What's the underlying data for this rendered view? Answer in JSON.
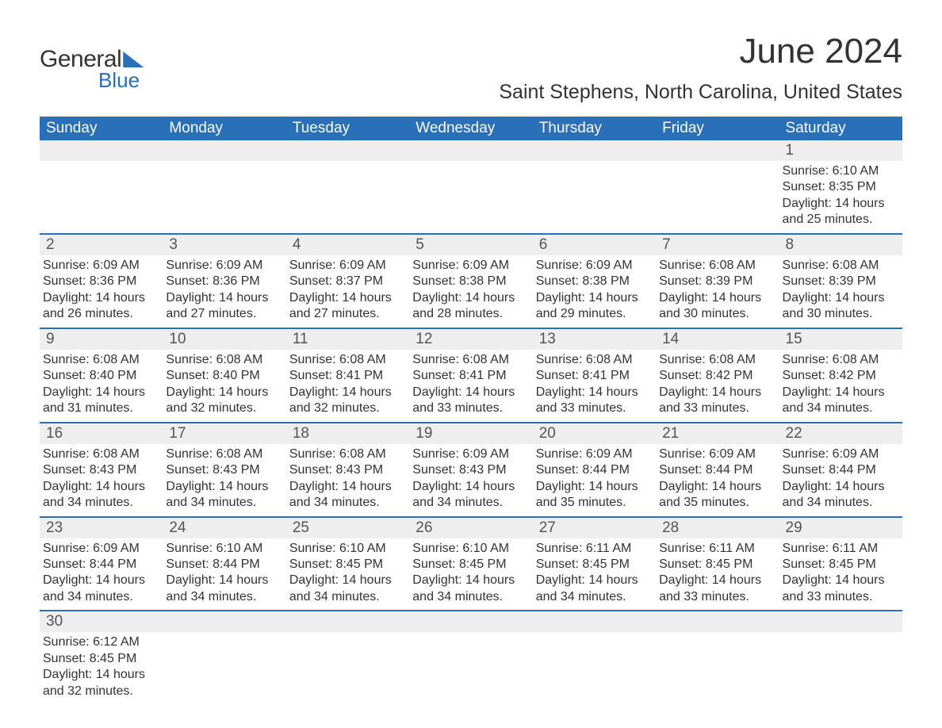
{
  "logo": {
    "word1": "General",
    "word2": "Blue",
    "color_dark": "#333333",
    "color_blue": "#2970b8"
  },
  "title": "June 2024",
  "location": "Saint Stephens, North Carolina, United States",
  "header_bg": "#2970b8",
  "header_fg": "#ffffff",
  "daynum_bg": "#eeeeee",
  "text_color": "#333333",
  "week_headers": [
    "Sunday",
    "Monday",
    "Tuesday",
    "Wednesday",
    "Thursday",
    "Friday",
    "Saturday"
  ],
  "weeks": [
    {
      "nums": [
        "",
        "",
        "",
        "",
        "",
        "",
        "1"
      ],
      "cells": [
        {},
        {},
        {},
        {},
        {},
        {},
        {
          "sr": "Sunrise: 6:10 AM",
          "ss": "Sunset: 8:35 PM",
          "d1": "Daylight: 14 hours",
          "d2": "and 25 minutes."
        }
      ]
    },
    {
      "nums": [
        "2",
        "3",
        "4",
        "5",
        "6",
        "7",
        "8"
      ],
      "cells": [
        {
          "sr": "Sunrise: 6:09 AM",
          "ss": "Sunset: 8:36 PM",
          "d1": "Daylight: 14 hours",
          "d2": "and 26 minutes."
        },
        {
          "sr": "Sunrise: 6:09 AM",
          "ss": "Sunset: 8:36 PM",
          "d1": "Daylight: 14 hours",
          "d2": "and 27 minutes."
        },
        {
          "sr": "Sunrise: 6:09 AM",
          "ss": "Sunset: 8:37 PM",
          "d1": "Daylight: 14 hours",
          "d2": "and 27 minutes."
        },
        {
          "sr": "Sunrise: 6:09 AM",
          "ss": "Sunset: 8:38 PM",
          "d1": "Daylight: 14 hours",
          "d2": "and 28 minutes."
        },
        {
          "sr": "Sunrise: 6:09 AM",
          "ss": "Sunset: 8:38 PM",
          "d1": "Daylight: 14 hours",
          "d2": "and 29 minutes."
        },
        {
          "sr": "Sunrise: 6:08 AM",
          "ss": "Sunset: 8:39 PM",
          "d1": "Daylight: 14 hours",
          "d2": "and 30 minutes."
        },
        {
          "sr": "Sunrise: 6:08 AM",
          "ss": "Sunset: 8:39 PM",
          "d1": "Daylight: 14 hours",
          "d2": "and 30 minutes."
        }
      ]
    },
    {
      "nums": [
        "9",
        "10",
        "11",
        "12",
        "13",
        "14",
        "15"
      ],
      "cells": [
        {
          "sr": "Sunrise: 6:08 AM",
          "ss": "Sunset: 8:40 PM",
          "d1": "Daylight: 14 hours",
          "d2": "and 31 minutes."
        },
        {
          "sr": "Sunrise: 6:08 AM",
          "ss": "Sunset: 8:40 PM",
          "d1": "Daylight: 14 hours",
          "d2": "and 32 minutes."
        },
        {
          "sr": "Sunrise: 6:08 AM",
          "ss": "Sunset: 8:41 PM",
          "d1": "Daylight: 14 hours",
          "d2": "and 32 minutes."
        },
        {
          "sr": "Sunrise: 6:08 AM",
          "ss": "Sunset: 8:41 PM",
          "d1": "Daylight: 14 hours",
          "d2": "and 33 minutes."
        },
        {
          "sr": "Sunrise: 6:08 AM",
          "ss": "Sunset: 8:41 PM",
          "d1": "Daylight: 14 hours",
          "d2": "and 33 minutes."
        },
        {
          "sr": "Sunrise: 6:08 AM",
          "ss": "Sunset: 8:42 PM",
          "d1": "Daylight: 14 hours",
          "d2": "and 33 minutes."
        },
        {
          "sr": "Sunrise: 6:08 AM",
          "ss": "Sunset: 8:42 PM",
          "d1": "Daylight: 14 hours",
          "d2": "and 34 minutes."
        }
      ]
    },
    {
      "nums": [
        "16",
        "17",
        "18",
        "19",
        "20",
        "21",
        "22"
      ],
      "cells": [
        {
          "sr": "Sunrise: 6:08 AM",
          "ss": "Sunset: 8:43 PM",
          "d1": "Daylight: 14 hours",
          "d2": "and 34 minutes."
        },
        {
          "sr": "Sunrise: 6:08 AM",
          "ss": "Sunset: 8:43 PM",
          "d1": "Daylight: 14 hours",
          "d2": "and 34 minutes."
        },
        {
          "sr": "Sunrise: 6:08 AM",
          "ss": "Sunset: 8:43 PM",
          "d1": "Daylight: 14 hours",
          "d2": "and 34 minutes."
        },
        {
          "sr": "Sunrise: 6:09 AM",
          "ss": "Sunset: 8:43 PM",
          "d1": "Daylight: 14 hours",
          "d2": "and 34 minutes."
        },
        {
          "sr": "Sunrise: 6:09 AM",
          "ss": "Sunset: 8:44 PM",
          "d1": "Daylight: 14 hours",
          "d2": "and 35 minutes."
        },
        {
          "sr": "Sunrise: 6:09 AM",
          "ss": "Sunset: 8:44 PM",
          "d1": "Daylight: 14 hours",
          "d2": "and 35 minutes."
        },
        {
          "sr": "Sunrise: 6:09 AM",
          "ss": "Sunset: 8:44 PM",
          "d1": "Daylight: 14 hours",
          "d2": "and 34 minutes."
        }
      ]
    },
    {
      "nums": [
        "23",
        "24",
        "25",
        "26",
        "27",
        "28",
        "29"
      ],
      "cells": [
        {
          "sr": "Sunrise: 6:09 AM",
          "ss": "Sunset: 8:44 PM",
          "d1": "Daylight: 14 hours",
          "d2": "and 34 minutes."
        },
        {
          "sr": "Sunrise: 6:10 AM",
          "ss": "Sunset: 8:44 PM",
          "d1": "Daylight: 14 hours",
          "d2": "and 34 minutes."
        },
        {
          "sr": "Sunrise: 6:10 AM",
          "ss": "Sunset: 8:45 PM",
          "d1": "Daylight: 14 hours",
          "d2": "and 34 minutes."
        },
        {
          "sr": "Sunrise: 6:10 AM",
          "ss": "Sunset: 8:45 PM",
          "d1": "Daylight: 14 hours",
          "d2": "and 34 minutes."
        },
        {
          "sr": "Sunrise: 6:11 AM",
          "ss": "Sunset: 8:45 PM",
          "d1": "Daylight: 14 hours",
          "d2": "and 34 minutes."
        },
        {
          "sr": "Sunrise: 6:11 AM",
          "ss": "Sunset: 8:45 PM",
          "d1": "Daylight: 14 hours",
          "d2": "and 33 minutes."
        },
        {
          "sr": "Sunrise: 6:11 AM",
          "ss": "Sunset: 8:45 PM",
          "d1": "Daylight: 14 hours",
          "d2": "and 33 minutes."
        }
      ]
    },
    {
      "nums": [
        "30",
        "",
        "",
        "",
        "",
        "",
        ""
      ],
      "cells": [
        {
          "sr": "Sunrise: 6:12 AM",
          "ss": "Sunset: 8:45 PM",
          "d1": "Daylight: 14 hours",
          "d2": "and 32 minutes."
        },
        {},
        {},
        {},
        {},
        {},
        {}
      ]
    }
  ]
}
